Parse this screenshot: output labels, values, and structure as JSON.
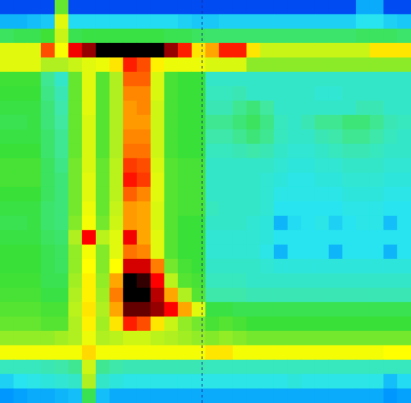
{
  "chart_data": {
    "type": "heatmap",
    "tick_labels": false,
    "value_range": [
      -10,
      150
    ],
    "cells": [
      [
        -8,
        -8,
        -8,
        -8,
        60,
        -8,
        -8,
        -8,
        -8,
        -8,
        -8,
        -8,
        -8,
        -8,
        -8,
        -8,
        -8,
        -8,
        -8,
        -8,
        -8,
        -8,
        -8,
        -8,
        -8,
        -8,
        10,
        10,
        -8,
        -8
      ],
      [
        12,
        12,
        14,
        16,
        80,
        20,
        20,
        20,
        20,
        20,
        20,
        20,
        20,
        18,
        16,
        16,
        18,
        18,
        18,
        18,
        18,
        18,
        18,
        18,
        18,
        18,
        22,
        22,
        18,
        16
      ],
      [
        48,
        50,
        50,
        55,
        75,
        50,
        52,
        52,
        52,
        52,
        52,
        52,
        50,
        50,
        48,
        46,
        46,
        46,
        46,
        46,
        46,
        46,
        46,
        46,
        46,
        46,
        48,
        48,
        48,
        46
      ],
      [
        80,
        80,
        80,
        110,
        85,
        120,
        135,
        150,
        150,
        150,
        150,
        150,
        135,
        115,
        90,
        100,
        115,
        115,
        90,
        75,
        75,
        75,
        75,
        75,
        75,
        75,
        75,
        90,
        90,
        90
      ],
      [
        80,
        80,
        80,
        70,
        70,
        75,
        80,
        82,
        90,
        115,
        110,
        88,
        82,
        82,
        82,
        78,
        78,
        78,
        65,
        65,
        65,
        65,
        65,
        65,
        65,
        65,
        65,
        65,
        65,
        65
      ],
      [
        55,
        55,
        55,
        40,
        30,
        60,
        80,
        58,
        70,
        108,
        108,
        78,
        56,
        54,
        54,
        30,
        30,
        30,
        30,
        30,
        30,
        30,
        30,
        30,
        30,
        30,
        30,
        30,
        30,
        30
      ],
      [
        54,
        54,
        54,
        42,
        34,
        60,
        80,
        58,
        70,
        104,
        104,
        78,
        56,
        54,
        54,
        32,
        32,
        34,
        30,
        30,
        30,
        30,
        30,
        28,
        28,
        30,
        30,
        30,
        30,
        30
      ],
      [
        52,
        52,
        52,
        44,
        36,
        60,
        80,
        58,
        70,
        102,
        104,
        76,
        56,
        54,
        54,
        34,
        34,
        40,
        44,
        38,
        30,
        30,
        30,
        30,
        30,
        30,
        34,
        34,
        30,
        30
      ],
      [
        50,
        50,
        52,
        44,
        38,
        60,
        78,
        58,
        70,
        102,
        102,
        76,
        56,
        54,
        54,
        40,
        40,
        44,
        48,
        42,
        32,
        30,
        34,
        40,
        40,
        44,
        44,
        40,
        34,
        32
      ],
      [
        52,
        52,
        52,
        46,
        40,
        60,
        78,
        58,
        70,
        104,
        104,
        76,
        56,
        54,
        54,
        36,
        36,
        40,
        44,
        40,
        32,
        30,
        30,
        34,
        36,
        40,
        40,
        36,
        32,
        30
      ],
      [
        54,
        54,
        54,
        46,
        40,
        60,
        78,
        58,
        70,
        106,
        106,
        76,
        56,
        54,
        54,
        32,
        32,
        34,
        36,
        34,
        30,
        28,
        28,
        30,
        32,
        34,
        34,
        32,
        30,
        30
      ],
      [
        56,
        56,
        56,
        48,
        42,
        62,
        78,
        60,
        72,
        112,
        110,
        78,
        58,
        56,
        56,
        30,
        30,
        30,
        30,
        30,
        28,
        26,
        26,
        28,
        28,
        30,
        30,
        30,
        28,
        28
      ],
      [
        56,
        56,
        56,
        48,
        44,
        62,
        80,
        60,
        72,
        116,
        112,
        80,
        58,
        56,
        56,
        30,
        30,
        30,
        30,
        28,
        26,
        24,
        24,
        26,
        26,
        28,
        28,
        28,
        26,
        26
      ],
      [
        54,
        54,
        54,
        48,
        44,
        62,
        80,
        60,
        72,
        108,
        104,
        80,
        58,
        56,
        56,
        30,
        30,
        30,
        30,
        28,
        24,
        24,
        24,
        24,
        24,
        26,
        26,
        26,
        24,
        24
      ],
      [
        52,
        52,
        52,
        46,
        44,
        62,
        82,
        60,
        74,
        102,
        100,
        78,
        58,
        56,
        56,
        32,
        30,
        30,
        30,
        28,
        22,
        22,
        22,
        22,
        22,
        24,
        24,
        24,
        22,
        22
      ],
      [
        50,
        50,
        52,
        46,
        44,
        64,
        84,
        62,
        76,
        102,
        100,
        78,
        58,
        54,
        54,
        30,
        30,
        30,
        28,
        26,
        12,
        20,
        22,
        24,
        18,
        22,
        24,
        24,
        14,
        22
      ],
      [
        52,
        52,
        52,
        48,
        46,
        70,
        118,
        72,
        80,
        120,
        100,
        80,
        58,
        54,
        54,
        28,
        28,
        28,
        28,
        26,
        22,
        22,
        22,
        22,
        22,
        22,
        22,
        22,
        22,
        22
      ],
      [
        54,
        54,
        54,
        50,
        48,
        66,
        84,
        64,
        80,
        106,
        104,
        80,
        58,
        54,
        54,
        28,
        28,
        28,
        28,
        24,
        12,
        22,
        22,
        22,
        12,
        22,
        22,
        22,
        12,
        22
      ],
      [
        54,
        54,
        54,
        50,
        48,
        66,
        86,
        64,
        86,
        125,
        125,
        105,
        62,
        56,
        54,
        30,
        30,
        30,
        30,
        28,
        26,
        26,
        26,
        26,
        26,
        26,
        26,
        26,
        26,
        26
      ],
      [
        55,
        55,
        55,
        50,
        50,
        68,
        88,
        66,
        100,
        150,
        145,
        118,
        72,
        58,
        56,
        32,
        32,
        32,
        30,
        30,
        30,
        30,
        30,
        30,
        30,
        30,
        30,
        30,
        30,
        30
      ],
      [
        56,
        56,
        56,
        52,
        52,
        70,
        88,
        68,
        105,
        150,
        150,
        130,
        100,
        70,
        58,
        36,
        36,
        36,
        34,
        34,
        34,
        34,
        34,
        34,
        34,
        34,
        34,
        34,
        34,
        34
      ],
      [
        58,
        58,
        58,
        56,
        56,
        72,
        90,
        70,
        100,
        140,
        140,
        135,
        118,
        100,
        80,
        52,
        52,
        50,
        50,
        50,
        50,
        50,
        50,
        50,
        50,
        50,
        50,
        50,
        50,
        50
      ],
      [
        60,
        60,
        60,
        58,
        58,
        70,
        88,
        68,
        90,
        115,
        110,
        90,
        75,
        66,
        62,
        56,
        58,
        56,
        54,
        54,
        54,
        54,
        54,
        54,
        54,
        54,
        54,
        54,
        54,
        54
      ],
      [
        66,
        66,
        66,
        66,
        68,
        70,
        82,
        70,
        72,
        76,
        76,
        72,
        70,
        68,
        66,
        64,
        66,
        64,
        62,
        62,
        62,
        62,
        62,
        62,
        62,
        62,
        62,
        62,
        62,
        62
      ],
      [
        84,
        84,
        84,
        84,
        84,
        84,
        92,
        84,
        84,
        84,
        84,
        84,
        84,
        84,
        84,
        90,
        90,
        84,
        84,
        84,
        84,
        84,
        84,
        84,
        84,
        84,
        84,
        84,
        86,
        86
      ],
      [
        32,
        32,
        32,
        34,
        36,
        40,
        76,
        40,
        36,
        34,
        34,
        34,
        34,
        34,
        34,
        32,
        32,
        32,
        32,
        32,
        32,
        32,
        32,
        32,
        32,
        32,
        32,
        32,
        32,
        32
      ],
      [
        18,
        22,
        24,
        26,
        28,
        30,
        70,
        30,
        26,
        24,
        24,
        24,
        24,
        24,
        24,
        24,
        24,
        24,
        24,
        24,
        24,
        26,
        24,
        24,
        24,
        24,
        24,
        24,
        14,
        20
      ],
      [
        6,
        8,
        10,
        10,
        12,
        14,
        50,
        14,
        10,
        10,
        10,
        10,
        10,
        10,
        10,
        10,
        10,
        10,
        10,
        10,
        10,
        10,
        10,
        10,
        10,
        10,
        10,
        10,
        6,
        8
      ]
    ]
  }
}
